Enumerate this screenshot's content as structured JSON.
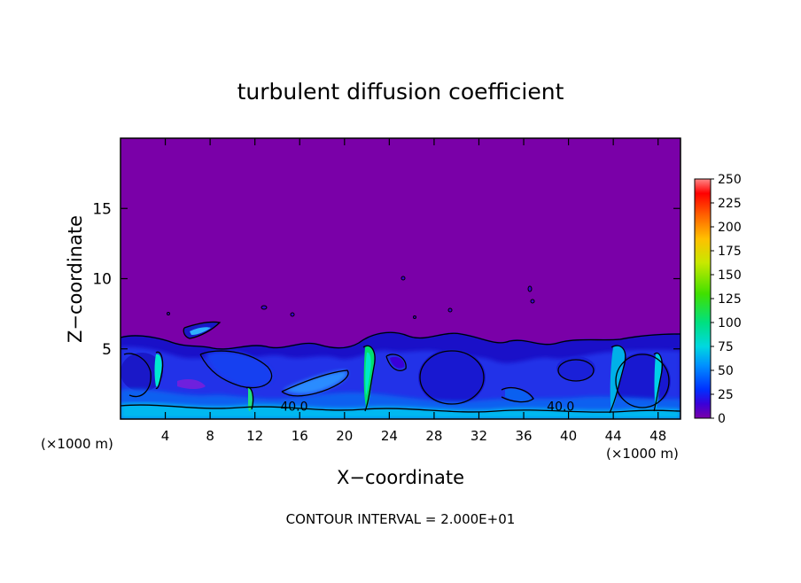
{
  "chart_data": {
    "type": "heatmap",
    "title": "turbulent diffusion coefficient",
    "xlabel": "X−coordinate",
    "ylabel": "Z−coordinate",
    "x_unit_left": "(×1000 m)",
    "x_unit_right": "(×1000 m)",
    "xlim": [
      0,
      50
    ],
    "ylim": [
      0,
      20
    ],
    "x_ticks": [
      4,
      8,
      12,
      16,
      20,
      24,
      28,
      32,
      36,
      40,
      44,
      48
    ],
    "y_ticks": [
      5,
      10,
      15
    ],
    "colorbar": {
      "range": [
        0,
        250
      ],
      "ticks": [
        0,
        25,
        50,
        75,
        100,
        125,
        150,
        175,
        200,
        225,
        250
      ],
      "colors": [
        "#7a00a8",
        "#3a00d8",
        "#0030ff",
        "#0090ff",
        "#00d8e0",
        "#00e080",
        "#40e000",
        "#c8e800",
        "#ffc000",
        "#ff6000",
        "#ff0000",
        "#ff8888"
      ]
    },
    "contour_labels": [
      {
        "text": "40.0",
        "x": 15.5,
        "z": 0.9
      },
      {
        "text": "40.0",
        "x": 39.3,
        "z": 0.9
      }
    ],
    "contour_interval_text": "CONTOUR INTERVAL = 2.000E+01"
  }
}
